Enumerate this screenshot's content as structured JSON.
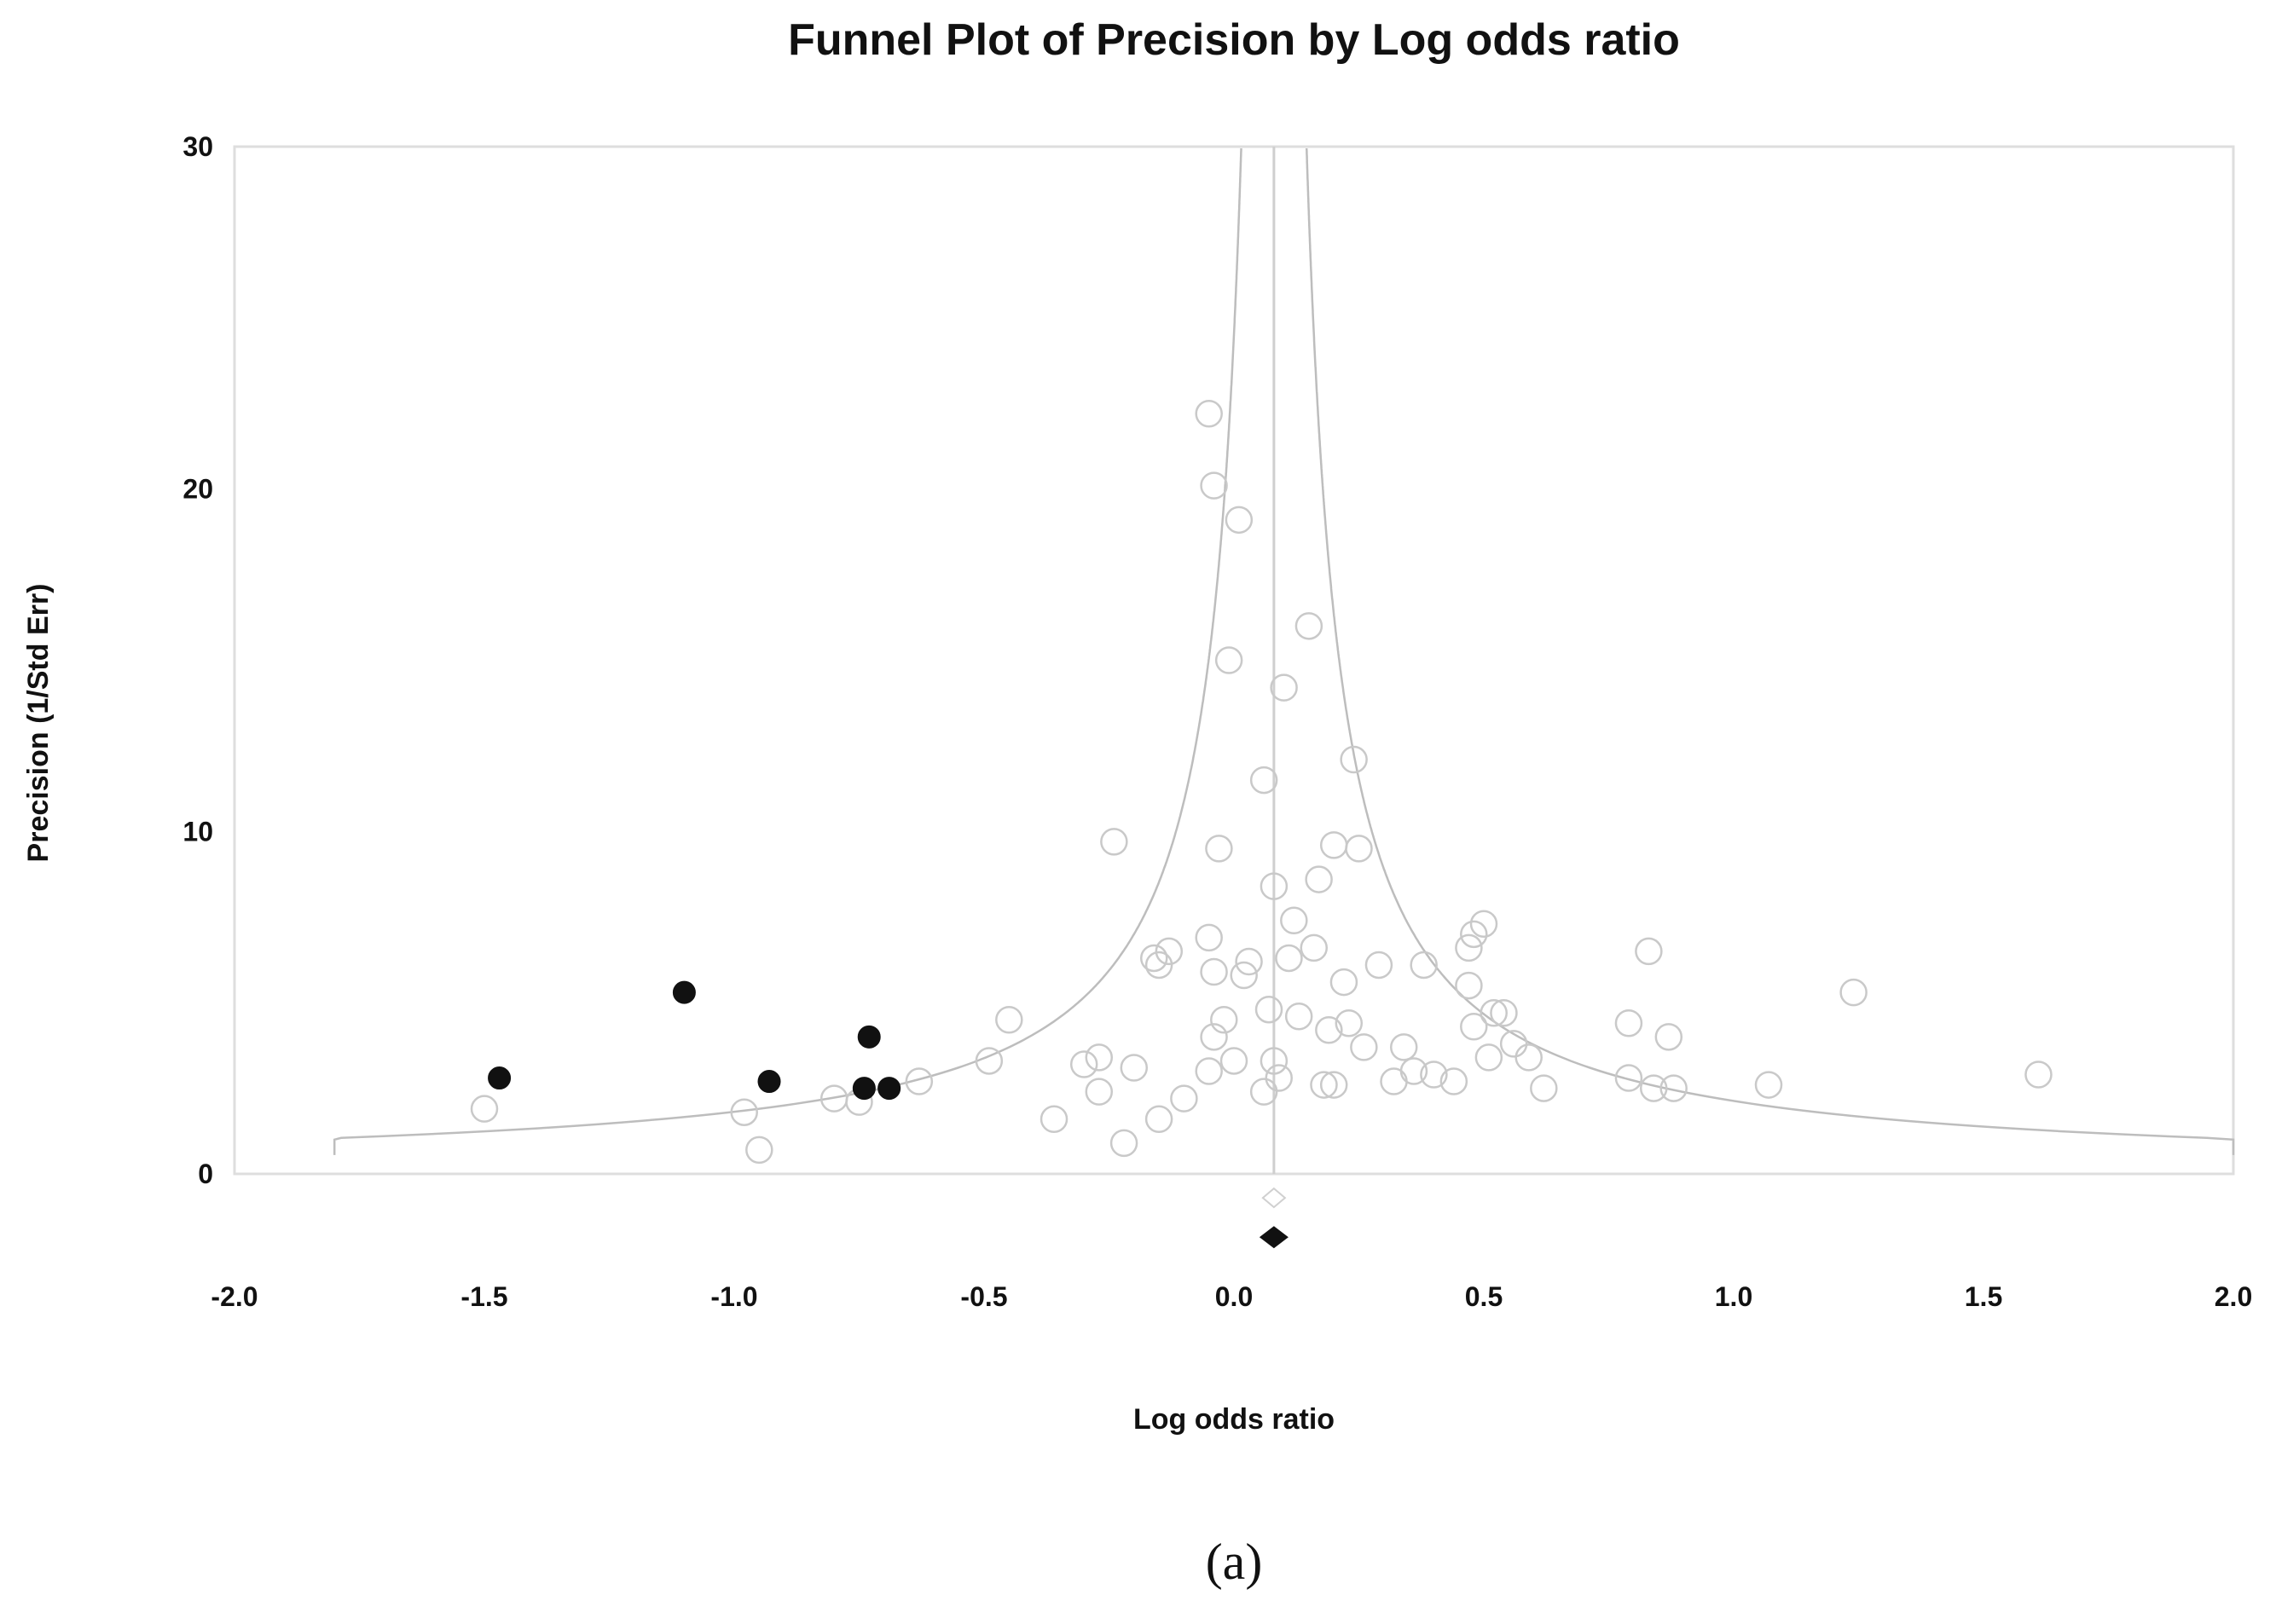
{
  "chart_data": {
    "type": "scatter",
    "title": "Funnel Plot of Precision by Log odds ratio",
    "xlabel": "Log odds ratio",
    "ylabel": "Precision (1/Std Err)",
    "xlim": [
      -2.0,
      2.0
    ],
    "ylim": [
      0,
      30
    ],
    "x_ticks": [
      "-2.0",
      "-1.5",
      "-1.0",
      "-0.5",
      "0.0",
      "0.5",
      "1.0",
      "1.5",
      "2.0"
    ],
    "y_ticks": [
      "0",
      "10",
      "20",
      "30"
    ],
    "grid": false,
    "caption": "(a)",
    "pooled_estimate": 0.08,
    "funnel_z": 1.96,
    "series": [
      {
        "marker": "open-circle",
        "color": "#c9c9c9",
        "x": [
          -1.5,
          -0.98,
          -0.95,
          -0.8,
          -0.75,
          -0.63,
          -0.49,
          -0.45,
          -0.36,
          -0.3,
          -0.27,
          -0.27,
          -0.24,
          -0.22,
          -0.2,
          -0.16,
          -0.15,
          -0.15,
          -0.13,
          -0.1,
          -0.05,
          -0.04,
          -0.05,
          -0.04,
          -0.05,
          -0.04,
          -0.03,
          -0.02,
          -0.01,
          0.0,
          0.01,
          0.02,
          0.03,
          0.06,
          0.06,
          0.07,
          0.08,
          0.08,
          0.09,
          0.1,
          0.11,
          0.12,
          0.13,
          0.15,
          0.16,
          0.17,
          0.18,
          0.19,
          0.2,
          0.2,
          0.22,
          0.23,
          0.24,
          0.25,
          0.26,
          0.29,
          0.32,
          0.34,
          0.36,
          0.38,
          0.4,
          0.44,
          0.47,
          0.47,
          0.48,
          0.48,
          0.5,
          0.51,
          0.52,
          0.54,
          0.56,
          0.59,
          0.62,
          0.79,
          0.79,
          0.83,
          0.84,
          0.87,
          0.88,
          1.07,
          1.24,
          1.61
        ],
        "y": [
          1.9,
          1.8,
          0.7,
          2.2,
          2.1,
          2.7,
          3.3,
          4.5,
          1.6,
          3.2,
          2.4,
          3.4,
          9.7,
          0.9,
          3.1,
          6.3,
          6.1,
          1.6,
          6.5,
          2.2,
          22.2,
          20.1,
          6.9,
          5.9,
          3.0,
          4.0,
          9.5,
          4.5,
          15.0,
          3.3,
          19.1,
          5.8,
          6.2,
          11.5,
          2.4,
          4.8,
          8.4,
          3.3,
          2.8,
          14.2,
          6.3,
          7.4,
          4.6,
          16.0,
          6.6,
          8.6,
          2.6,
          4.2,
          2.6,
          9.6,
          5.6,
          4.4,
          12.1,
          9.5,
          3.7,
          6.1,
          2.7,
          3.7,
          3.0,
          6.1,
          2.9,
          2.7,
          5.5,
          6.6,
          7.0,
          4.3,
          7.3,
          3.4,
          4.7,
          4.7,
          3.8,
          3.4,
          2.5,
          2.8,
          4.4,
          6.5,
          2.5,
          4.0,
          2.5,
          2.6,
          5.3,
          2.9
        ]
      },
      {
        "marker": "filled-circle",
        "color": "#111111",
        "x": [
          -1.47,
          -1.1,
          -0.93,
          -0.74,
          -0.73,
          -0.69
        ],
        "y": [
          2.8,
          5.3,
          2.7,
          2.5,
          4.0,
          2.5
        ]
      }
    ]
  }
}
